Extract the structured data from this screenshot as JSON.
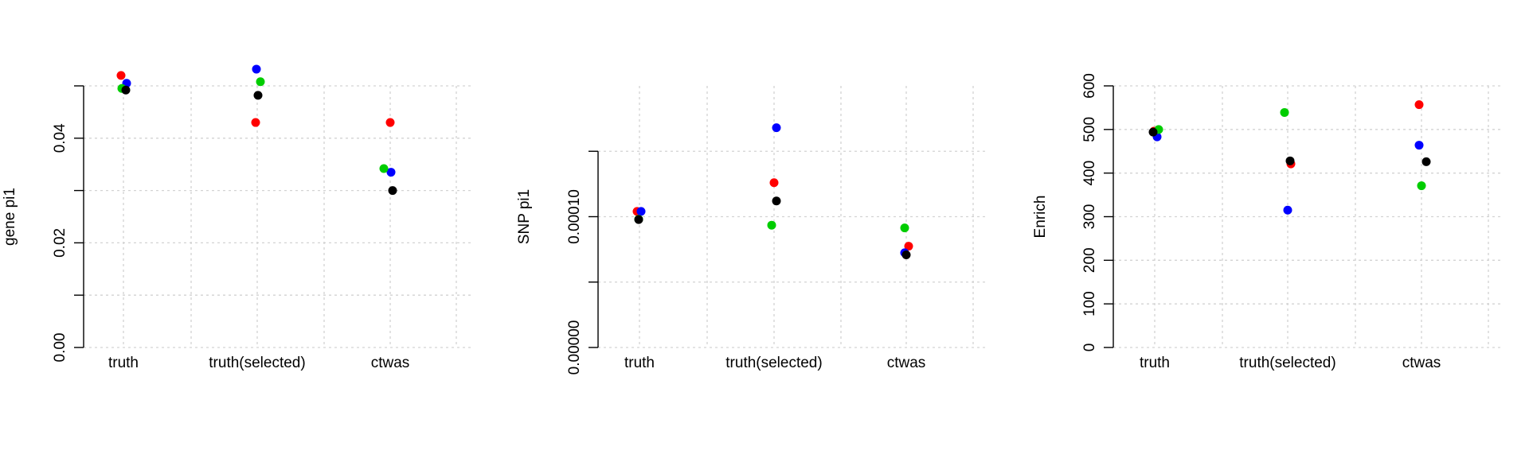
{
  "colors": {
    "black": "#000000",
    "red": "#ff0000",
    "green": "#00cd00",
    "blue": "#0000ff"
  },
  "chart_data": [
    {
      "type": "scatter",
      "categories": [
        "truth",
        "truth(selected)",
        "ctwas"
      ],
      "xlabel": "",
      "ylabel": "gene pi1",
      "ylim": [
        0,
        0.05
      ],
      "yticks": [
        0,
        0.01,
        0.02,
        0.03,
        0.04,
        0.05
      ],
      "ytick_labels": [
        "0.00",
        "",
        "0.02",
        "",
        "0.04",
        ""
      ],
      "grid": true,
      "series": [
        {
          "color": "#ff0000",
          "values": [
            0.052,
            0.043,
            0.043
          ]
        },
        {
          "color": "#0000ff",
          "values": [
            0.0505,
            0.0532,
            0.0335
          ]
        },
        {
          "color": "#00cd00",
          "values": [
            0.0495,
            0.0508,
            0.0342
          ]
        },
        {
          "color": "#000000",
          "values": [
            0.0492,
            0.0482,
            0.03
          ]
        }
      ]
    },
    {
      "type": "scatter",
      "categories": [
        "truth",
        "truth(selected)",
        "ctwas"
      ],
      "xlabel": "",
      "ylabel": "SNP pi1",
      "ylim": [
        0,
        0.0002
      ],
      "yticks": [
        0,
        5e-05,
        0.0001,
        0.00015
      ],
      "ytick_labels": [
        "0.00000",
        "",
        "0.00010",
        ""
      ],
      "grid": true,
      "series": [
        {
          "color": "#ff0000",
          "values": [
            0.000104,
            0.000126,
            7.74e-05
          ]
        },
        {
          "color": "#0000ff",
          "values": [
            0.000104,
            0.000168,
            7.24e-05
          ]
        },
        {
          "color": "#00cd00",
          "values": [
            9.8e-05,
            9.35e-05,
            9.14e-05
          ]
        },
        {
          "color": "#000000",
          "values": [
            9.78e-05,
            0.000112,
            7.08e-05
          ]
        }
      ]
    },
    {
      "type": "scatter",
      "categories": [
        "truth",
        "truth(selected)",
        "ctwas"
      ],
      "xlabel": "",
      "ylabel": "Enrich",
      "ylim": [
        0,
        600
      ],
      "yticks": [
        0,
        100,
        200,
        300,
        400,
        500,
        600
      ],
      "ytick_labels": [
        "0",
        "100",
        "200",
        "300",
        "400",
        "500",
        "600"
      ],
      "grid": true,
      "series": [
        {
          "color": "#ff0000",
          "values": [
            496,
            421,
            557
          ]
        },
        {
          "color": "#0000ff",
          "values": [
            483,
            315,
            464
          ]
        },
        {
          "color": "#00cd00",
          "values": [
            500,
            539,
            371
          ]
        },
        {
          "color": "#000000",
          "values": [
            494,
            428,
            426
          ]
        }
      ]
    }
  ]
}
